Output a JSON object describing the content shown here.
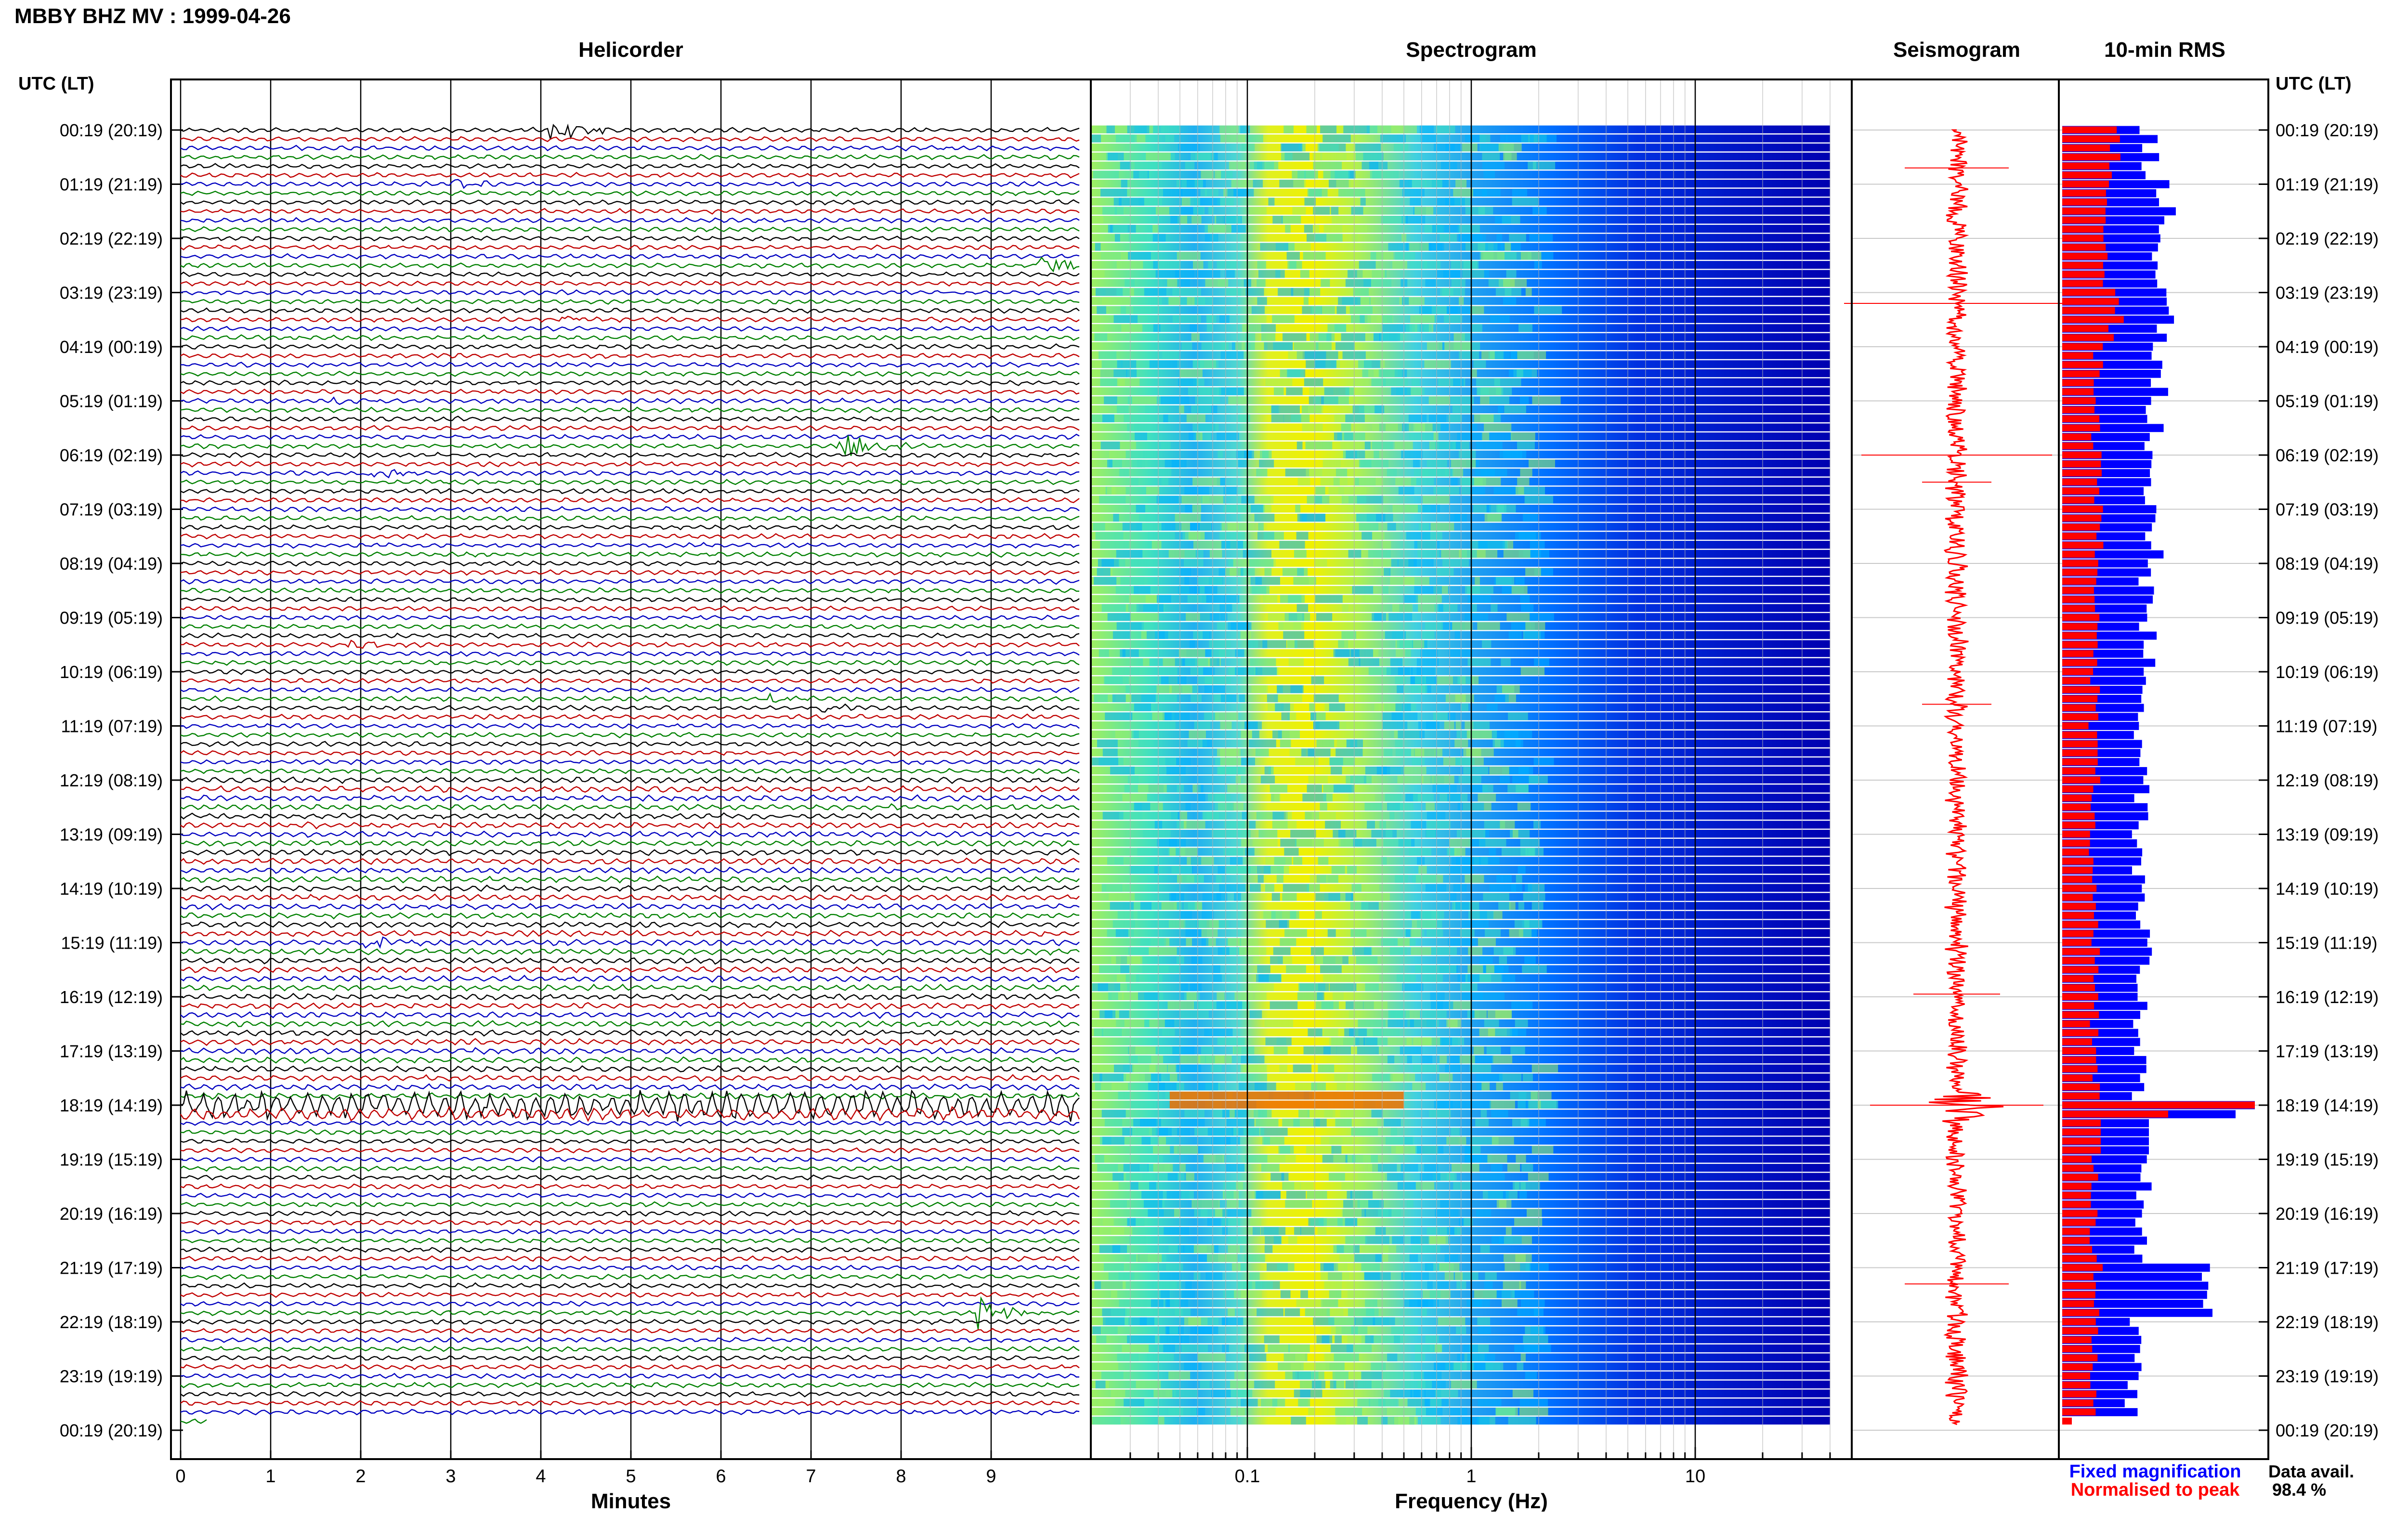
{
  "header": {
    "title": "MBBY BHZ MV : 1999-04-26"
  },
  "panels": {
    "helicorder_title": "Helicorder",
    "spectrogram_title": "Spectrogram",
    "seismogram_title": "Seismogram",
    "rms_title": "10-min RMS",
    "left_axis_label": "UTC (LT)",
    "right_axis_label": "UTC (LT)",
    "helicorder_xlabel": "Minutes",
    "spectrogram_xlabel": "Frequency (Hz)"
  },
  "legend": {
    "fixed": "Fixed magnification",
    "normalised": "Normalised to peak",
    "fixed_color": "#0000ff",
    "normalised_color": "#ff0000"
  },
  "data_availability": {
    "label": "Data avail.",
    "value": "98.4 %"
  },
  "chart_data": {
    "type": "helicorder",
    "time_labels": [
      "00:19 (20:19)",
      "01:19 (21:19)",
      "02:19 (22:19)",
      "03:19 (23:19)",
      "04:19 (00:19)",
      "05:19 (01:19)",
      "06:19 (02:19)",
      "07:19 (03:19)",
      "08:19 (04:19)",
      "09:19 (05:19)",
      "10:19 (06:19)",
      "11:19 (07:19)",
      "12:19 (08:19)",
      "13:19 (09:19)",
      "14:19 (10:19)",
      "15:19 (11:19)",
      "16:19 (12:19)",
      "17:19 (13:19)",
      "18:19 (14:19)",
      "19:19 (15:19)",
      "20:19 (16:19)",
      "21:19 (17:19)",
      "22:19 (18:19)",
      "23:19 (19:19)",
      "00:19 (20:19)"
    ],
    "minute_ticks": [
      "0",
      "1",
      "2",
      "3",
      "4",
      "5",
      "6",
      "7",
      "8",
      "9"
    ],
    "frequency_ticks": [
      "0.1",
      "1",
      "10"
    ],
    "frequency_range_hz": [
      0.02,
      50
    ],
    "trace_colors": [
      "#000000",
      "#c00000",
      "#0000c0",
      "#008000"
    ],
    "rows_per_hour": 6,
    "events": [
      {
        "hour": 0,
        "minute": 4.1,
        "amplitude": 1.6,
        "color": "#000000"
      },
      {
        "hour": 1,
        "minute": 3.0,
        "amplitude": 0.6,
        "color": "#000000"
      },
      {
        "hour": 2,
        "minute": 9.5,
        "amplitude": 2.0,
        "color": "#008000"
      },
      {
        "hour": 3,
        "minute": 4.2,
        "amplitude": 0.5,
        "color": "#0000c0"
      },
      {
        "hour": 5,
        "minute": 7.3,
        "amplitude": 2.2,
        "color": "#008000"
      },
      {
        "hour": 5,
        "minute": 1.7,
        "amplitude": 0.6,
        "color": "#000000"
      },
      {
        "hour": 6,
        "minute": 2.0,
        "amplitude": 1.0,
        "color": "#008000"
      },
      {
        "hour": 9,
        "minute": 1.8,
        "amplitude": 0.7,
        "color": "#008000"
      },
      {
        "hour": 10,
        "minute": 6.5,
        "amplitude": 0.6,
        "color": "#000000"
      },
      {
        "hour": 10,
        "minute": 7.1,
        "amplitude": 0.6,
        "color": "#0000c0"
      },
      {
        "hour": 15,
        "minute": 2.0,
        "amplitude": 1.0,
        "color": "#008000"
      },
      {
        "hour": 16,
        "minute": 7.8,
        "amplitude": 0.7,
        "color": "#c00000"
      },
      {
        "hour": 21,
        "minute": 8.8,
        "amplitude": 2.2,
        "color": "#008000"
      }
    ],
    "rms_fixed": [
      0.45,
      0.55,
      0.5,
      0.52,
      0.5,
      0.48,
      0.47,
      0.47,
      0.45,
      0.44,
      0.43,
      0.42,
      0.42,
      0.41,
      0.41,
      0.42,
      0.4,
      0.41,
      1.0,
      0.42,
      0.4,
      0.7,
      0.38,
      0.36
    ],
    "rms_normalised": [
      0.3,
      0.25,
      0.22,
      0.3,
      0.2,
      0.18,
      0.2,
      0.2,
      0.18,
      0.18,
      0.18,
      0.17,
      0.18,
      0.17,
      0.17,
      0.18,
      0.18,
      0.18,
      1.0,
      0.18,
      0.17,
      0.2,
      0.17,
      0.17
    ]
  }
}
